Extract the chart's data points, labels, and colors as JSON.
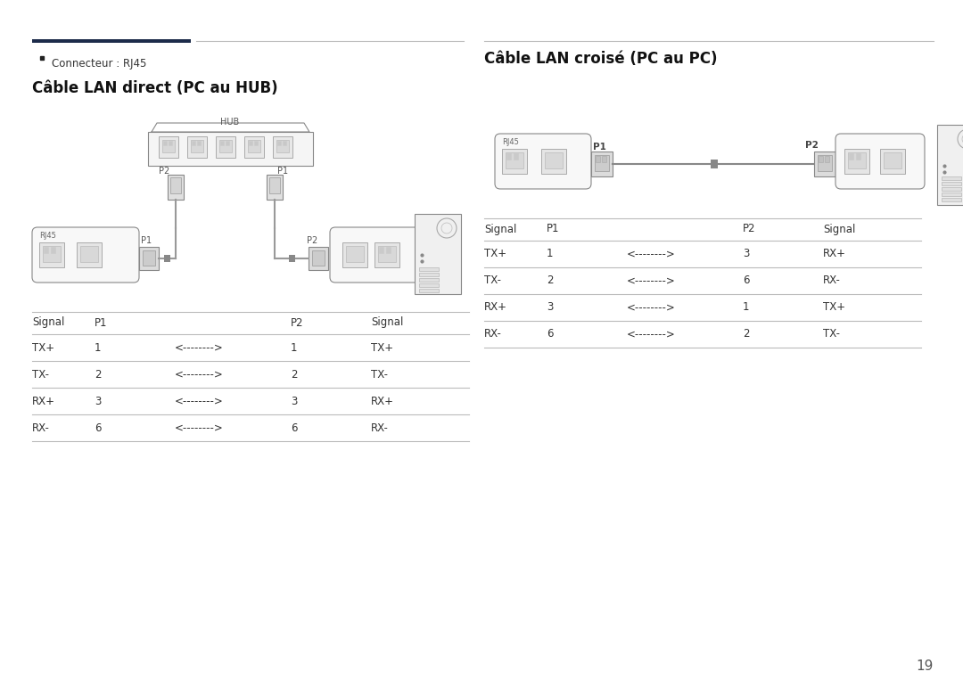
{
  "bg_color": "#ffffff",
  "dark_color": "#1c2b4a",
  "line_color": "#bbbbbb",
  "gray": "#888888",
  "lightgray": "#f2f2f2",
  "midgray": "#cccccc",
  "darkgray": "#555555",
  "bullet_connector": "Connecteur : RJ45",
  "title_left": "Cable LAN direct (PC au HUB)",
  "title_right": "Cable LAN croise (PC au PC)",
  "page_number": "19",
  "table_left_headers": [
    "Signal",
    "P1",
    "",
    "P2",
    "Signal"
  ],
  "table_left_rows": [
    [
      "TX+",
      "1",
      "<-------->",
      "1",
      "TX+"
    ],
    [
      "TX-",
      "2",
      "<-------->",
      "2",
      "TX-"
    ],
    [
      "RX+",
      "3",
      "<-------->",
      "3",
      "RX+"
    ],
    [
      "RX-",
      "6",
      "<-------->",
      "6",
      "RX-"
    ]
  ],
  "table_right_headers": [
    "Signal",
    "P1",
    "",
    "P2",
    "Signal"
  ],
  "table_right_rows": [
    [
      "TX+",
      "1",
      "<-------->",
      "3",
      "RX+"
    ],
    [
      "TX-",
      "2",
      "<-------->",
      "6",
      "RX-"
    ],
    [
      "RX+",
      "3",
      "<-------->",
      "1",
      "TX+"
    ],
    [
      "RX-",
      "6",
      "<-------->",
      "2",
      "TX-"
    ]
  ]
}
